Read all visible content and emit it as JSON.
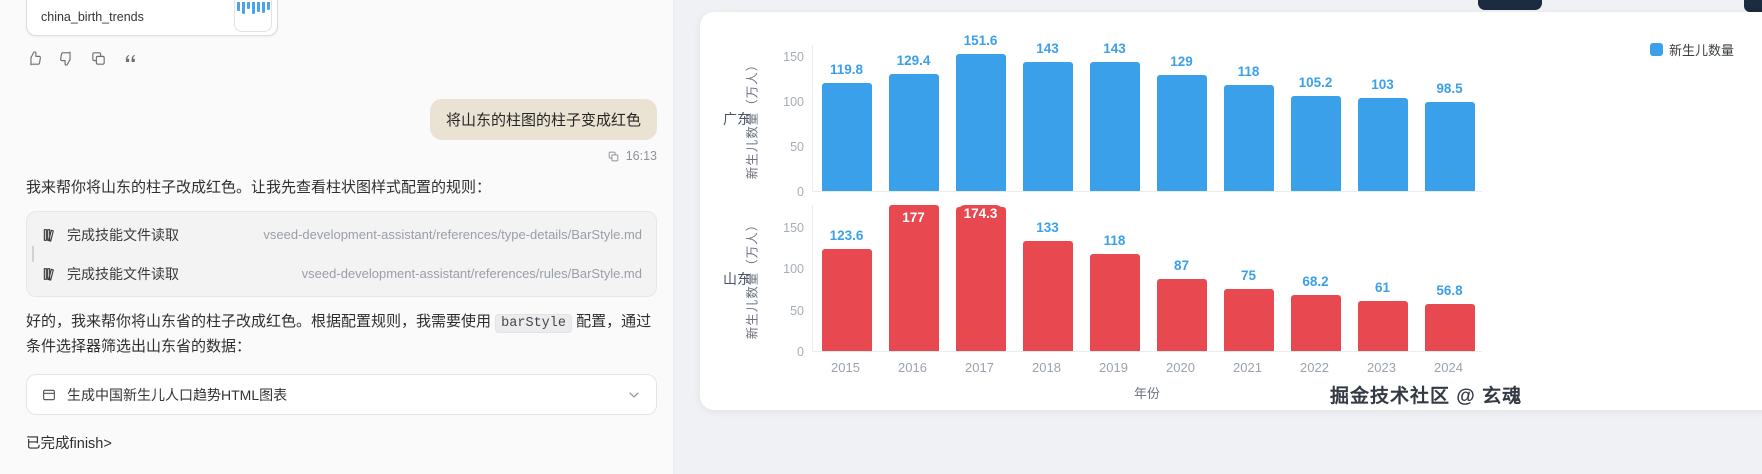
{
  "chat": {
    "artifact_card": {
      "title": "china_birth_trends"
    },
    "actions": {
      "icons": [
        "thumbs-up-icon",
        "thumbs-down-icon",
        "copy-icon",
        "quote-icon"
      ]
    },
    "user_message": {
      "text": "将山东的柱图的柱子变成红色",
      "time": "16:13"
    },
    "assistant_intro": "我来帮你将山东的柱子改成红色。让我先查看柱状图样式配置的规则：",
    "tool_calls": [
      {
        "label": "完成技能文件读取",
        "path": "vseed-development-assistant/references/type-details/BarStyle.md"
      },
      {
        "label": "完成技能文件读取",
        "path": "vseed-development-assistant/references/rules/BarStyle.md"
      }
    ],
    "assistant_body": {
      "before_code": "好的，我来帮你将山东省的柱子改成红色。根据配置规则，我需要使用 ",
      "code": "barStyle",
      "after_code": " 配置，通过条件选择器筛选出山东省的数据："
    },
    "collapsible": {
      "label": "生成中国新生儿人口趋势HTML图表"
    },
    "footer_text": "已完成finish>"
  },
  "chart_panel": {
    "watermark": "掘金技术社区 @ 玄魂",
    "accent_blue": "#3ba0ea",
    "accent_red": "#e8484f"
  },
  "chart_data": {
    "type": "bar",
    "categories": [
      "2015",
      "2016",
      "2017",
      "2018",
      "2019",
      "2020",
      "2021",
      "2022",
      "2023",
      "2024"
    ],
    "xlabel": "年份",
    "legend": [
      "新生儿数量"
    ],
    "legend_color": "#3ba0ea",
    "charts": [
      {
        "row_label": "广东",
        "ylabel": "新生儿数量（万人）",
        "values": [
          119.8,
          129.4,
          151.6,
          143,
          143,
          129,
          118,
          105.2,
          103,
          98.5
        ],
        "bar_color": "#3ba0ea",
        "label_color": "#3ba0ea",
        "yticks": [
          0,
          50,
          100,
          150
        ],
        "ymax": 163,
        "label_styles": [
          "out",
          "out",
          "out",
          "out",
          "out",
          "out",
          "out",
          "out",
          "out",
          "out"
        ]
      },
      {
        "row_label": "山东",
        "ylabel": "新生儿数量（万人）",
        "values": [
          123.6,
          177,
          174.3,
          133,
          118,
          87,
          75,
          68.2,
          61,
          56.8
        ],
        "bar_color": "#e8484f",
        "label_color": "#3ba0ea",
        "yticks": [
          0,
          50,
          100,
          150
        ],
        "ymax": 178,
        "label_styles": [
          "out",
          "in",
          "pill",
          "out",
          "out",
          "out",
          "out",
          "out",
          "out",
          "out"
        ]
      }
    ]
  }
}
